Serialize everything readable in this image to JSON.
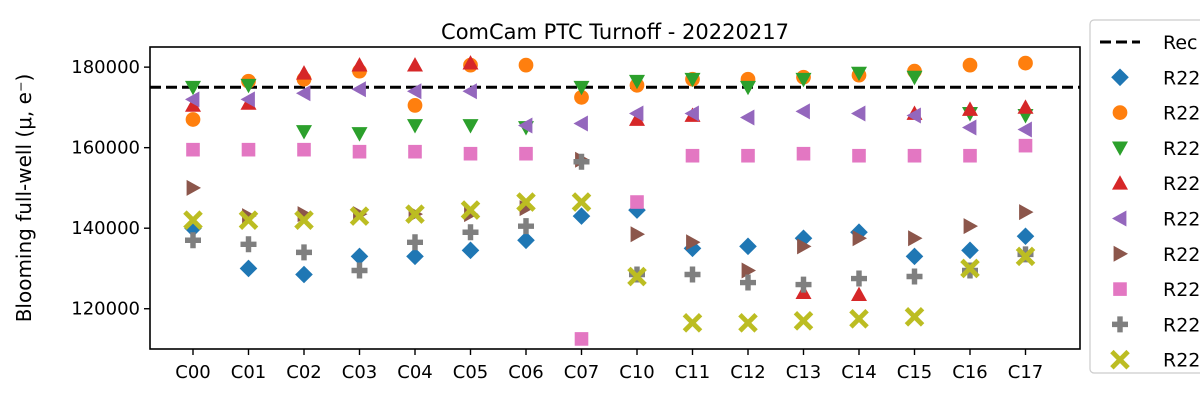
{
  "chart_data": {
    "type": "scatter",
    "title": "ComCam PTC Turnoff - 20220217",
    "ylabel": "Blooming full-well (μ, e⁻)",
    "xlabel": "",
    "categories": [
      "C00",
      "C01",
      "C02",
      "C03",
      "C04",
      "C05",
      "C06",
      "C07",
      "C10",
      "C11",
      "C12",
      "C13",
      "C14",
      "C15",
      "C16",
      "C17"
    ],
    "ylim": [
      110000,
      185000
    ],
    "yticks": [
      "120000",
      "140000",
      "160000",
      "180000"
    ],
    "yticks_values": [
      120000,
      140000,
      160000,
      180000
    ],
    "reference_line": {
      "value": 175000,
      "color": "#000000",
      "style": "dashed"
    },
    "legend_labels": [
      "Rec",
      "R22",
      "R22",
      "R22",
      "R22",
      "R22",
      "R22",
      "R22",
      "R22",
      "R22"
    ],
    "legend_position": "outside-right",
    "series": [
      {
        "marker": "diamond",
        "color": "#1f77b4",
        "values": [
          140000,
          130000,
          128500,
          133000,
          133000,
          134500,
          137000,
          143000,
          144500,
          135000,
          135500,
          137500,
          139000,
          133000,
          134500,
          138000
        ]
      },
      {
        "marker": "circle",
        "color": "#ff7f0e",
        "values": [
          167000,
          176500,
          177000,
          179000,
          170500,
          180500,
          180500,
          172500,
          175500,
          177000,
          177000,
          177500,
          178000,
          179000,
          180500,
          181000
        ]
      },
      {
        "marker": "triangle-down",
        "color": "#2ca02c",
        "values": [
          175000,
          175500,
          164000,
          163500,
          165500,
          165500,
          165000,
          175000,
          176500,
          177000,
          175000,
          177000,
          178500,
          177500,
          168500,
          168000
        ]
      },
      {
        "marker": "triangle-up",
        "color": "#d62728",
        "values": [
          170500,
          171000,
          178500,
          180500,
          180500,
          181000,
          null,
          null,
          167000,
          168000,
          null,
          124000,
          123500,
          168500,
          169500,
          170000
        ]
      },
      {
        "marker": "triangle-left",
        "color": "#9467bd",
        "values": [
          172000,
          172000,
          173500,
          174500,
          174000,
          174000,
          165500,
          166000,
          168500,
          168500,
          167500,
          169000,
          168500,
          168000,
          165000,
          164500
        ]
      },
      {
        "marker": "triangle-right",
        "color": "#8c564b",
        "values": [
          150000,
          143000,
          143500,
          143500,
          143500,
          143500,
          145000,
          157000,
          138500,
          136500,
          129500,
          135500,
          137500,
          137500,
          140500,
          144000
        ]
      },
      {
        "marker": "square",
        "color": "#e377c2",
        "values": [
          159500,
          159500,
          159500,
          159000,
          159000,
          158500,
          158500,
          112500,
          146500,
          158000,
          158000,
          158500,
          158000,
          158000,
          158000,
          160500
        ]
      },
      {
        "marker": "plus",
        "color": "#7f7f7f",
        "values": [
          137000,
          136000,
          134000,
          129500,
          136500,
          139000,
          140500,
          156500,
          128500,
          128500,
          126500,
          126000,
          127500,
          128000,
          129500,
          133500
        ]
      },
      {
        "marker": "x",
        "color": "#bcbd22",
        "values": [
          142000,
          142000,
          142000,
          143000,
          143500,
          144500,
          146500,
          146500,
          128000,
          116500,
          116500,
          117000,
          117500,
          118000,
          130000,
          133000
        ]
      }
    ]
  }
}
